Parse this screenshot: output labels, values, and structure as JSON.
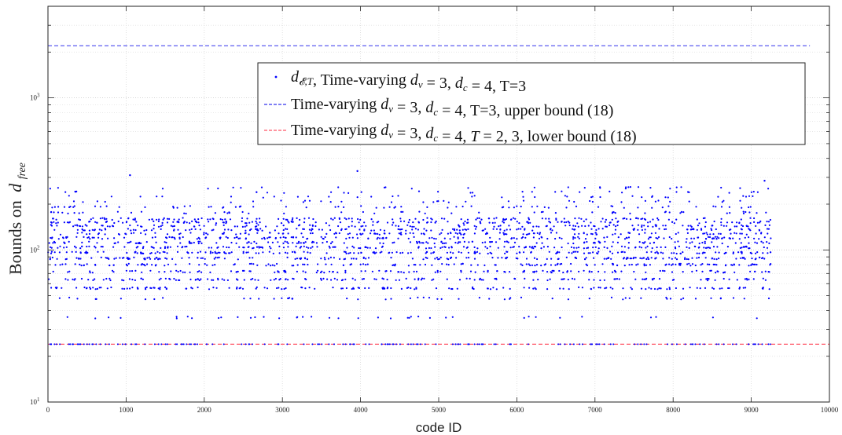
{
  "chart_data": {
    "type": "scatter",
    "xlabel": "code ID",
    "ylabel": "Bounds on",
    "ylabel_math": "d",
    "ylabel_math_sub": "free",
    "xlim": [
      0,
      10000
    ],
    "ylim": [
      10,
      4000
    ],
    "yscale": "log",
    "grid": true,
    "legend_position": "top-right",
    "x_ticks": [
      0,
      1000,
      2000,
      3000,
      4000,
      5000,
      6000,
      7000,
      8000,
      9000,
      10000
    ],
    "x_tick_labels": [
      "0",
      "1000",
      "2000",
      "3000",
      "4000",
      "5000",
      "6000",
      "7000",
      "8000",
      "9000",
      "10000"
    ],
    "y_ticks": [
      10,
      100,
      1000
    ],
    "y_tick_labels": [
      {
        "base": "10",
        "exp": "1"
      },
      {
        "base": "10",
        "exp": "2"
      },
      {
        "base": "10",
        "exp": "3"
      }
    ],
    "series": [
      {
        "kind": "points",
        "color": "#0000ff",
        "legend": [
          {
            "text": "d",
            "italic": true
          },
          {
            "text": "𝓔,T",
            "sub": true,
            "italic": true
          },
          {
            "text": ", Time-varying "
          },
          {
            "text": "d",
            "italic": true
          },
          {
            "text": "v",
            "sub": true,
            "italic": true
          },
          {
            "text": " = 3, "
          },
          {
            "text": "d",
            "italic": true
          },
          {
            "text": "c",
            "sub": true,
            "italic": true
          },
          {
            "text": " = 4, T=3"
          }
        ],
        "x_range": [
          0,
          9250
        ],
        "levels": [
          36,
          48,
          56,
          64,
          72,
          80,
          88,
          96,
          104,
          112,
          120,
          128,
          136,
          144,
          152,
          160,
          176,
          192,
          208,
          224,
          240,
          256
        ],
        "outliers": [
          {
            "x": 1050,
            "y": 310
          },
          {
            "x": 3960,
            "y": 330
          },
          {
            "x": 9170,
            "y": 285
          }
        ]
      },
      {
        "kind": "line",
        "color": "#3333ee",
        "dash": true,
        "value": 2200,
        "x_range": [
          0,
          9750
        ],
        "legend": [
          {
            "text": "Time-varying "
          },
          {
            "text": "d",
            "italic": true
          },
          {
            "text": "v",
            "sub": true,
            "italic": true
          },
          {
            "text": " = 3, "
          },
          {
            "text": "d",
            "italic": true
          },
          {
            "text": "c",
            "sub": true,
            "italic": true
          },
          {
            "text": " = 4, T=3, upper bound (18)"
          }
        ]
      },
      {
        "kind": "line",
        "color": "#ff5566",
        "dash": true,
        "value": 24,
        "x_range": [
          0,
          10000
        ],
        "legend": [
          {
            "text": "Time-varying "
          },
          {
            "text": "d",
            "italic": true
          },
          {
            "text": "v",
            "sub": true,
            "italic": true
          },
          {
            "text": " = 3, "
          },
          {
            "text": "d",
            "italic": true
          },
          {
            "text": "c",
            "sub": true,
            "italic": true
          },
          {
            "text": " = 4, "
          },
          {
            "text": "T",
            "italic": true
          },
          {
            "text": " = 2, 3, lower bound (18)"
          }
        ]
      }
    ]
  }
}
